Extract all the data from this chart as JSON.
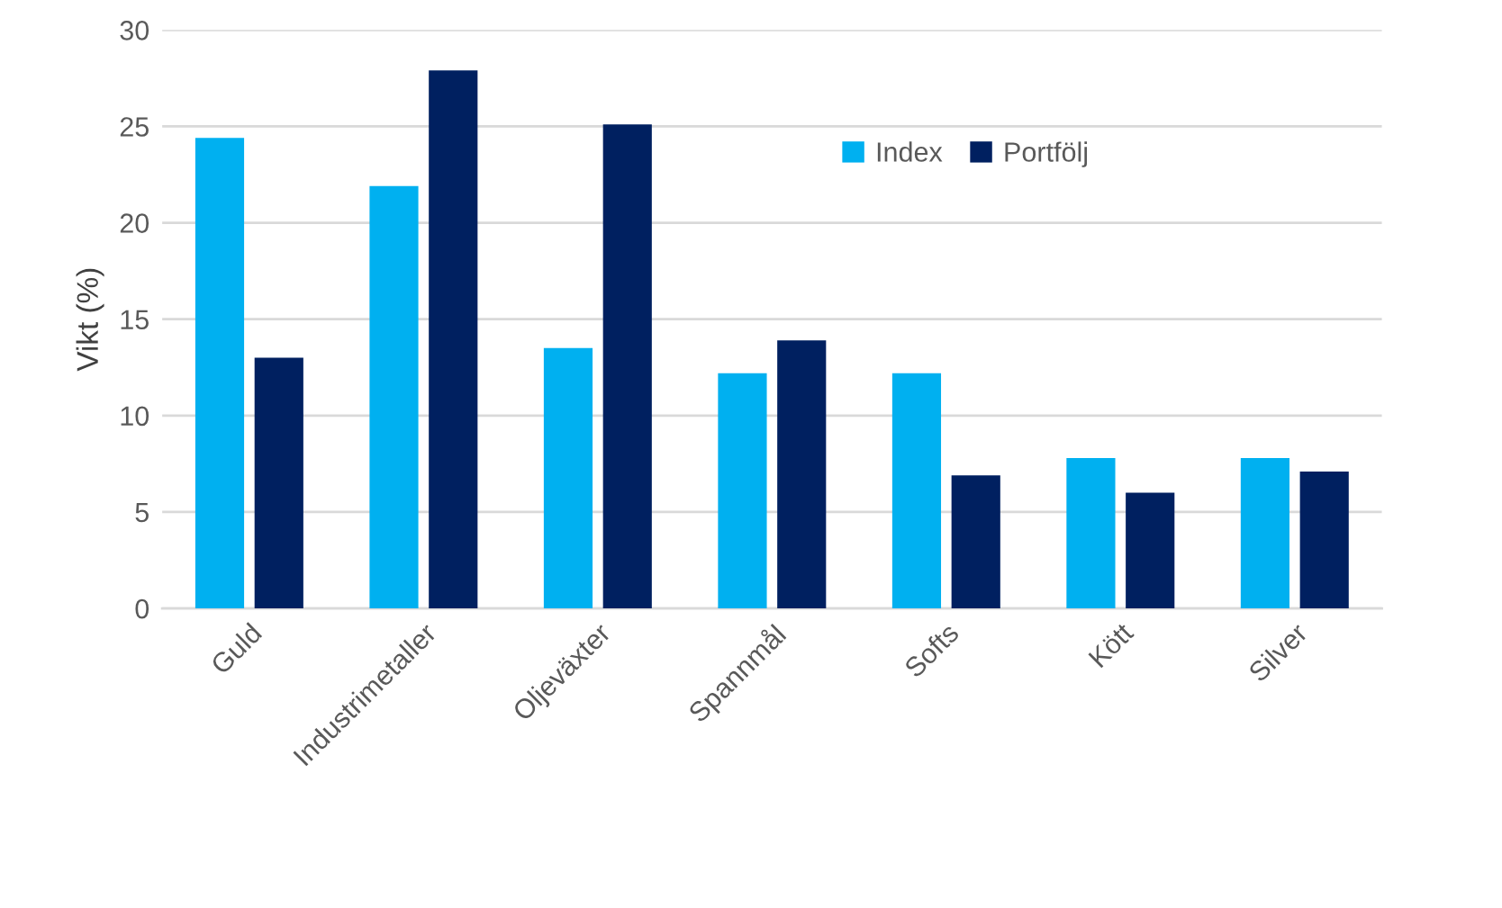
{
  "chart_data": {
    "type": "bar",
    "ylabel": "Vikt (%)",
    "categories": [
      "Guld",
      "Industrimetaller",
      "Oljeväxter",
      "Spannmål",
      "Softs",
      "Kött",
      "Silver"
    ],
    "series": [
      {
        "name": "Index",
        "color": "#00b0f0",
        "values": [
          24.4,
          21.9,
          13.5,
          12.2,
          12.2,
          7.8,
          7.8
        ]
      },
      {
        "name": "Portfölj",
        "color": "#002060",
        "values": [
          13.0,
          27.9,
          25.1,
          13.9,
          6.9,
          6.0,
          7.1
        ]
      }
    ],
    "ylim": [
      0,
      30
    ],
    "yticks": [
      0,
      5,
      10,
      15,
      20,
      25,
      30
    ],
    "grid": "y",
    "legend": "top right"
  }
}
